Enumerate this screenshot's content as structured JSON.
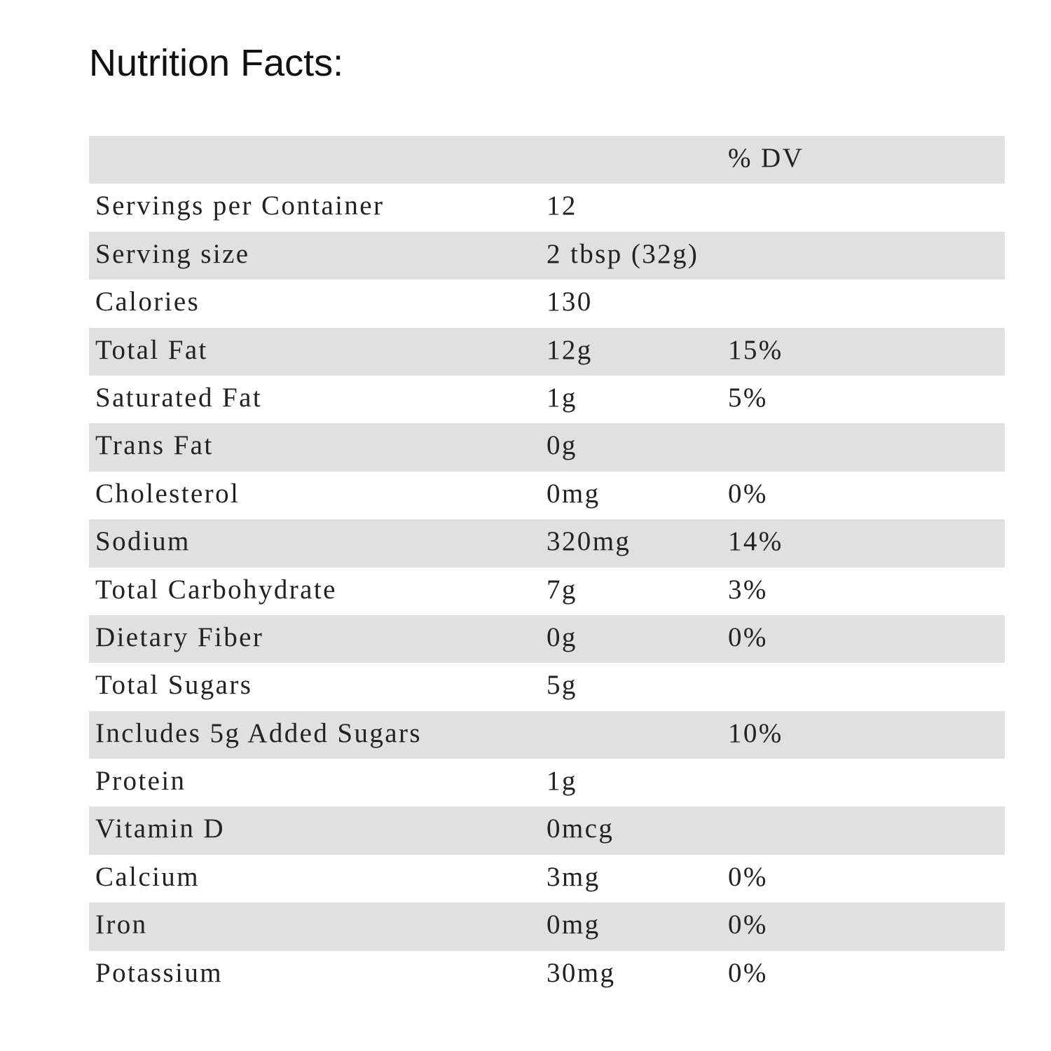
{
  "title": "Nutrition Facts:",
  "table": {
    "header": {
      "name": "",
      "amount": "",
      "dv": "% DV"
    },
    "rows": [
      {
        "name": "Servings per Container",
        "amount": "12",
        "dv": ""
      },
      {
        "name": "Serving size",
        "amount": "2 tbsp (32g)",
        "dv": ""
      },
      {
        "name": "Calories",
        "amount": "130",
        "dv": ""
      },
      {
        "name": "Total Fat",
        "amount": "12g",
        "dv": "15%"
      },
      {
        "name": "Saturated Fat",
        "amount": "1g",
        "dv": "5%"
      },
      {
        "name": "Trans Fat",
        "amount": "0g",
        "dv": ""
      },
      {
        "name": "Cholesterol",
        "amount": "0mg",
        "dv": "0%"
      },
      {
        "name": "Sodium",
        "amount": "320mg",
        "dv": "14%"
      },
      {
        "name": "Total Carbohydrate",
        "amount": "7g",
        "dv": "3%"
      },
      {
        "name": "Dietary Fiber",
        "amount": "0g",
        "dv": "0%"
      },
      {
        "name": "Total Sugars",
        "amount": "5g",
        "dv": ""
      },
      {
        "name": "Includes 5g Added Sugars",
        "amount": "",
        "dv": "10%"
      },
      {
        "name": "Protein",
        "amount": "1g",
        "dv": ""
      },
      {
        "name": "Vitamin D",
        "amount": "0mcg",
        "dv": ""
      },
      {
        "name": "Calcium",
        "amount": "3mg",
        "dv": "0%"
      },
      {
        "name": "Iron",
        "amount": "0mg",
        "dv": "0%"
      },
      {
        "name": "Potassium",
        "amount": "30mg",
        "dv": "0%"
      }
    ]
  },
  "colors": {
    "row_shade": "#e0e0e0",
    "text": "#222222",
    "background": "#ffffff"
  }
}
